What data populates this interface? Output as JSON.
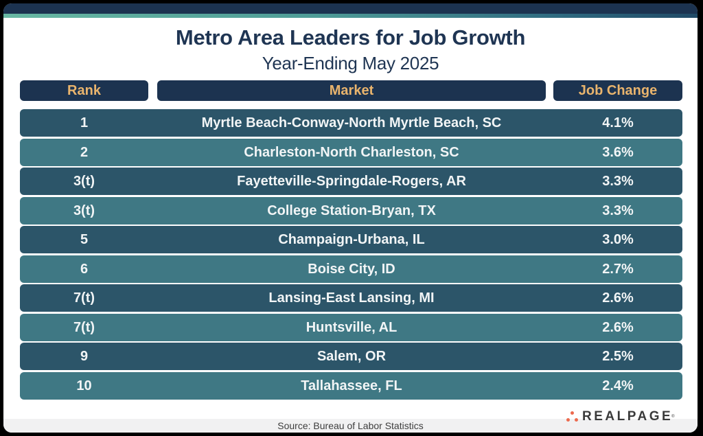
{
  "header": {
    "title": "Metro Area Leaders for Job Growth",
    "subtitle": "Year-Ending May 2025"
  },
  "table": {
    "columns": [
      "Rank",
      "Market",
      "Job Change"
    ],
    "rows": [
      {
        "rank": "1",
        "market": "Myrtle Beach-Conway-North Myrtle Beach, SC",
        "job_change": "4.1%"
      },
      {
        "rank": "2",
        "market": "Charleston-North Charleston, SC",
        "job_change": "3.6%"
      },
      {
        "rank": "3(t)",
        "market": "Fayetteville-Springdale-Rogers, AR",
        "job_change": "3.3%"
      },
      {
        "rank": "3(t)",
        "market": "College Station-Bryan, TX",
        "job_change": "3.3%"
      },
      {
        "rank": "5",
        "market": "Champaign-Urbana, IL",
        "job_change": "3.0%"
      },
      {
        "rank": "6",
        "market": "Boise City, ID",
        "job_change": "2.7%"
      },
      {
        "rank": "7(t)",
        "market": "Lansing-East Lansing, MI",
        "job_change": "2.6%"
      },
      {
        "rank": "7(t)",
        "market": "Huntsville, AL",
        "job_change": "2.6%"
      },
      {
        "rank": "9",
        "market": "Salem, OR",
        "job_change": "2.5%"
      },
      {
        "rank": "10",
        "market": "Tallahassee, FL",
        "job_change": "2.4%"
      }
    ]
  },
  "footer": {
    "source": "Source: Bureau of Labor Statistics",
    "logo_text": "REALPAGE",
    "logo_mark": "®"
  },
  "colors": {
    "navy": "#1c3350",
    "header_text": "#e9b46d",
    "row_dark": "#2c5569",
    "row_light": "#3f7884",
    "logo_dots": "#ec6a4e"
  },
  "chart_data": {
    "type": "table",
    "title": "Metro Area Leaders for Job Growth",
    "subtitle": "Year-Ending May 2025",
    "columns": [
      "Rank",
      "Market",
      "Job Change"
    ],
    "categories": [
      "Myrtle Beach-Conway-North Myrtle Beach, SC",
      "Charleston-North Charleston, SC",
      "Fayetteville-Springdale-Rogers, AR",
      "College Station-Bryan, TX",
      "Champaign-Urbana, IL",
      "Boise City, ID",
      "Lansing-East Lansing, MI",
      "Huntsville, AL",
      "Salem, OR",
      "Tallahassee, FL"
    ],
    "ranks": [
      "1",
      "2",
      "3(t)",
      "3(t)",
      "5",
      "6",
      "7(t)",
      "7(t)",
      "9",
      "10"
    ],
    "values": [
      4.1,
      3.6,
      3.3,
      3.3,
      3.0,
      2.7,
      2.6,
      2.6,
      2.5,
      2.4
    ],
    "unit": "%",
    "source": "Source: Bureau of Labor Statistics"
  }
}
